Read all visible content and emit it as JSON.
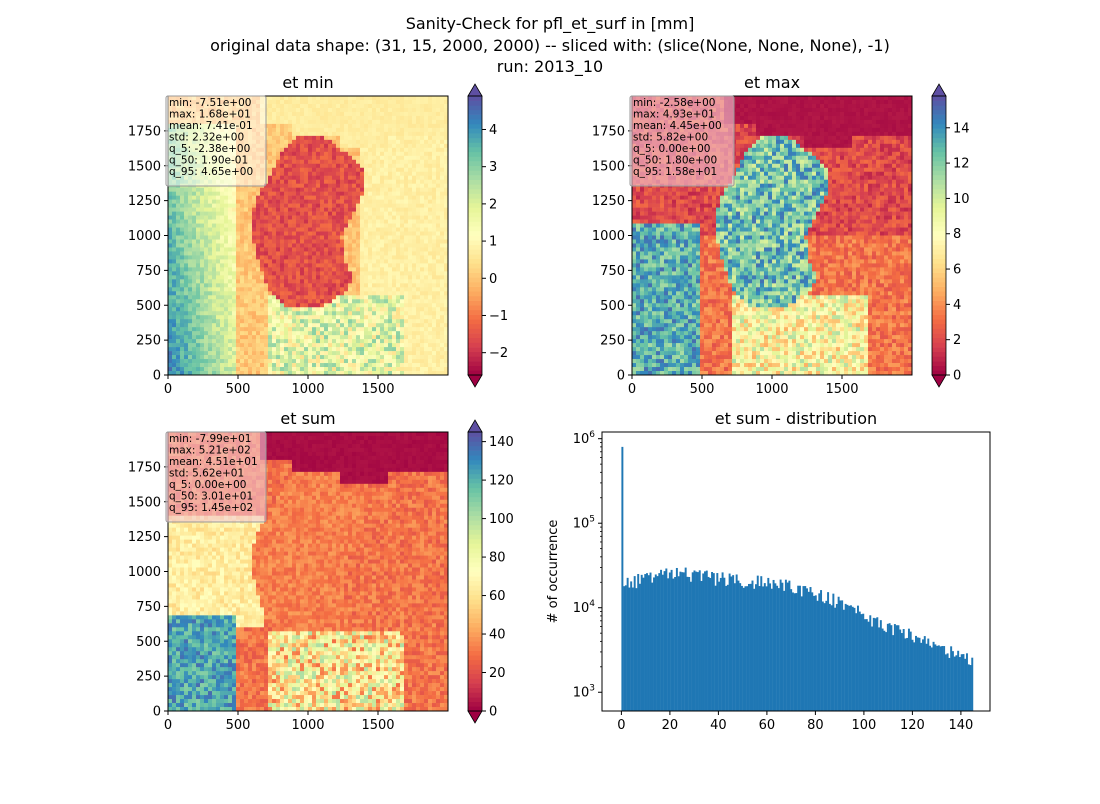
{
  "figure": {
    "suptitle_lines": [
      "Sanity-Check for pfl_et_surf in [mm]",
      "original data shape: (31, 15, 2000, 2000) -- sliced with: (slice(None, None, None), -1)",
      "run: 2013_10"
    ]
  },
  "colormap": {
    "name": "Spectral",
    "stops": [
      "#9e0142",
      "#d53e4f",
      "#f46d43",
      "#fdae61",
      "#fee08b",
      "#ffffbf",
      "#e6f598",
      "#abdda4",
      "#66c2a5",
      "#3288bd",
      "#5e4fa2"
    ]
  },
  "chart_data": [
    {
      "type": "heatmap",
      "title": "et min",
      "xlim": [
        0,
        2000
      ],
      "ylim": [
        0,
        2000
      ],
      "xticks": [
        0,
        500,
        1000,
        1500
      ],
      "yticks": [
        0,
        250,
        500,
        750,
        1000,
        1250,
        1500,
        1750
      ],
      "colorbar": {
        "vmin": -2.6,
        "vmax": 4.9,
        "ticks": [
          -2,
          -1,
          0,
          1,
          2,
          3,
          4
        ]
      },
      "stats": [
        "min: -7.51e+00",
        "max: 1.68e+01",
        "mean: 7.41e-01",
        "std: 2.32e+00",
        "q_5: -2.38e+00",
        "q_50: 1.90e-01",
        "q_95: 4.65e+00"
      ]
    },
    {
      "type": "heatmap",
      "title": "et max",
      "xlim": [
        0,
        2000
      ],
      "ylim": [
        0,
        2000
      ],
      "xticks": [
        0,
        500,
        1000,
        1500
      ],
      "yticks": [
        0,
        250,
        500,
        750,
        1000,
        1250,
        1500,
        1750
      ],
      "colorbar": {
        "vmin": 0,
        "vmax": 15.8,
        "ticks": [
          0,
          2,
          4,
          6,
          8,
          10,
          12,
          14
        ]
      },
      "stats": [
        "min: -2.58e+00",
        "max: 4.93e+01",
        "mean: 4.45e+00",
        "std: 5.82e+00",
        "q_5: 0.00e+00",
        "q_50: 1.80e+00",
        "q_95: 1.58e+01"
      ]
    },
    {
      "type": "heatmap",
      "title": "et sum",
      "xlim": [
        0,
        2000
      ],
      "ylim": [
        0,
        2000
      ],
      "xticks": [
        0,
        500,
        1000,
        1500
      ],
      "yticks": [
        0,
        250,
        500,
        750,
        1000,
        1250,
        1500,
        1750
      ],
      "colorbar": {
        "vmin": 0,
        "vmax": 145,
        "ticks": [
          0,
          20,
          40,
          60,
          80,
          100,
          120,
          140
        ]
      },
      "stats": [
        "min: -7.99e+01",
        "max: 5.21e+02",
        "mean: 4.51e+01",
        "std: 5.62e+01",
        "q_5: 0.00e+00",
        "q_50: 3.01e+01",
        "q_95: 1.45e+02"
      ]
    },
    {
      "type": "bar",
      "title": "et sum - distribution",
      "ylabel": "# of occurrence",
      "yscale": "log",
      "xlim": [
        -8,
        152
      ],
      "ylim": [
        600,
        1200000
      ],
      "xticks": [
        0,
        20,
        40,
        60,
        80,
        100,
        120,
        140
      ],
      "xtick_labels": [
        "0",
        "20",
        "40",
        "60",
        "80",
        "100",
        "120",
        "140"
      ],
      "yticks": [
        1000,
        10000,
        100000,
        1000000
      ],
      "ytick_labels": [
        [
          "10",
          "3"
        ],
        [
          "10",
          "4"
        ],
        [
          "10",
          "5"
        ],
        [
          "10",
          "6"
        ]
      ],
      "minor_yticks": [
        2000,
        3000,
        4000,
        5000,
        6000,
        7000,
        8000,
        9000,
        20000,
        30000,
        40000,
        50000,
        60000,
        70000,
        80000,
        90000,
        200000,
        300000,
        400000,
        500000,
        600000,
        700000,
        800000,
        900000
      ],
      "bins": {
        "start": 0,
        "end": 145,
        "count": 200
      },
      "color": "#1f77b4",
      "first_bin_value": 800000,
      "profile": [
        [
          0.7,
          18000
        ],
        [
          5,
          20000
        ],
        [
          10,
          23000
        ],
        [
          15,
          25000
        ],
        [
          20,
          26500
        ],
        [
          25,
          25500
        ],
        [
          30,
          24500
        ],
        [
          35,
          23500
        ],
        [
          40,
          22500
        ],
        [
          45,
          21500
        ],
        [
          50,
          21000
        ],
        [
          55,
          20500
        ],
        [
          60,
          19500
        ],
        [
          65,
          19000
        ],
        [
          70,
          18500
        ],
        [
          75,
          16000
        ],
        [
          80,
          14500
        ],
        [
          85,
          13000
        ],
        [
          90,
          11500
        ],
        [
          95,
          10000
        ],
        [
          100,
          8500
        ],
        [
          105,
          7000
        ],
        [
          110,
          6000
        ],
        [
          115,
          5500
        ],
        [
          120,
          4800
        ],
        [
          125,
          4300
        ],
        [
          130,
          3800
        ],
        [
          135,
          3200
        ],
        [
          140,
          2800
        ],
        [
          145,
          2400
        ]
      ]
    }
  ]
}
